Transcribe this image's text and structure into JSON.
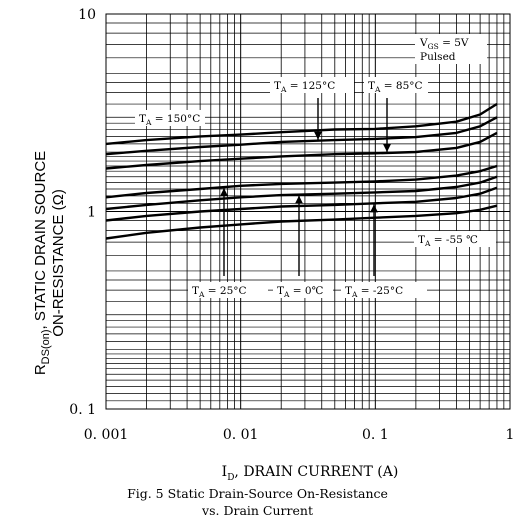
{
  "chart_data": {
    "type": "line",
    "title": "Fig. 5 Static Drain-Source On-Resistance",
    "subtitle": "vs. Drain Current",
    "xlabel_symbol": "I",
    "xlabel_sub": "D",
    "xlabel": ", DRAIN CURRENT (A)",
    "ylabel_line1_pre": "R",
    "ylabel_line1_sub": "DS(on)",
    "ylabel_line1_post": ", STATIC DRAIN SOURCE",
    "ylabel_line2": "ON-RESISTANCE (Ω)",
    "x_scale": "log",
    "y_scale": "log",
    "xlim": [
      0.001,
      1
    ],
    "ylim": [
      0.1,
      10
    ],
    "grid": true,
    "x_ticks": [
      {
        "value": 0.001,
        "label": "0. 001"
      },
      {
        "value": 0.01,
        "label": "0. 01"
      },
      {
        "value": 0.1,
        "label": "0. 1"
      },
      {
        "value": 1,
        "label": "1"
      }
    ],
    "y_ticks": [
      {
        "value": 0.1,
        "label": "0. 1"
      },
      {
        "value": 1,
        "label": "1"
      },
      {
        "value": 10,
        "label": "10"
      }
    ],
    "conditions": {
      "vgs_pre": "V",
      "vgs_sub": "GS",
      "vgs_post": " = 5V",
      "line2": "Pulsed"
    },
    "series": [
      {
        "name": "T_A = 150°C",
        "x": [
          0.001,
          0.002,
          0.005,
          0.01,
          0.02,
          0.05,
          0.1,
          0.2,
          0.4,
          0.6,
          0.8
        ],
        "y": [
          2.2,
          2.3,
          2.4,
          2.45,
          2.52,
          2.6,
          2.62,
          2.7,
          2.85,
          3.1,
          3.5
        ]
      },
      {
        "name": "T_A = 125°C",
        "x": [
          0.001,
          0.002,
          0.005,
          0.01,
          0.02,
          0.05,
          0.1,
          0.2,
          0.4,
          0.6,
          0.8
        ],
        "y": [
          1.95,
          2.03,
          2.12,
          2.18,
          2.25,
          2.3,
          2.33,
          2.38,
          2.5,
          2.7,
          3.0
        ]
      },
      {
        "name": "T_A = 85°C",
        "x": [
          0.001,
          0.002,
          0.005,
          0.01,
          0.02,
          0.05,
          0.1,
          0.2,
          0.4,
          0.6,
          0.8
        ],
        "y": [
          1.65,
          1.72,
          1.8,
          1.85,
          1.9,
          1.95,
          1.97,
          2.0,
          2.1,
          2.25,
          2.5
        ]
      },
      {
        "name": "T_A = 25°C",
        "x": [
          0.001,
          0.002,
          0.005,
          0.01,
          0.02,
          0.05,
          0.1,
          0.2,
          0.4,
          0.6,
          0.8
        ],
        "y": [
          1.18,
          1.24,
          1.3,
          1.35,
          1.38,
          1.4,
          1.42,
          1.45,
          1.52,
          1.6,
          1.7
        ]
      },
      {
        "name": "T_A = 0°C",
        "x": [
          0.001,
          0.002,
          0.005,
          0.01,
          0.02,
          0.05,
          0.1,
          0.2,
          0.4,
          0.6,
          0.8
        ],
        "y": [
          1.03,
          1.08,
          1.14,
          1.18,
          1.21,
          1.23,
          1.25,
          1.27,
          1.33,
          1.4,
          1.5
        ]
      },
      {
        "name": "T_A = -25°C",
        "x": [
          0.001,
          0.002,
          0.005,
          0.01,
          0.02,
          0.05,
          0.1,
          0.2,
          0.4,
          0.6,
          0.8
        ],
        "y": [
          0.9,
          0.95,
          1.0,
          1.03,
          1.06,
          1.08,
          1.1,
          1.12,
          1.17,
          1.23,
          1.32
        ]
      },
      {
        "name": "T_A = -55℃",
        "x": [
          0.001,
          0.002,
          0.005,
          0.01,
          0.02,
          0.05,
          0.1,
          0.2,
          0.4,
          0.6,
          0.8
        ],
        "y": [
          0.73,
          0.78,
          0.83,
          0.86,
          0.89,
          0.91,
          0.93,
          0.95,
          0.98,
          1.02,
          1.07
        ]
      }
    ],
    "annotations": [
      {
        "pre": "T",
        "sub": "A",
        "post": " = 150°C",
        "series": 0
      },
      {
        "pre": "T",
        "sub": "A",
        "post": " = 125°C",
        "series": 1
      },
      {
        "pre": "T",
        "sub": "A",
        "post": " = 85°C",
        "series": 2
      },
      {
        "pre": "T",
        "sub": "A",
        "post": " = 25°C",
        "series": 3
      },
      {
        "pre": "T",
        "sub": "A",
        "post": " = 0℃",
        "series": 4
      },
      {
        "pre": "T",
        "sub": "A",
        "post": " = -25°C",
        "series": 5
      },
      {
        "pre": "T",
        "sub": "A",
        "post": " = -55 ℃",
        "series": 6
      }
    ]
  }
}
